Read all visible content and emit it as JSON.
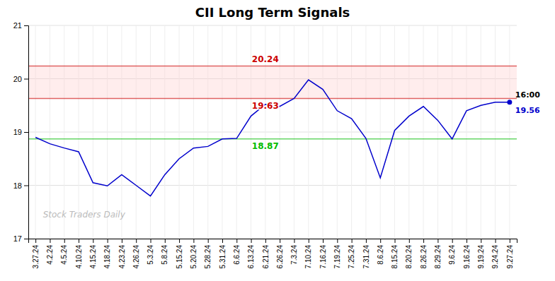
{
  "chart_data": {
    "type": "line",
    "title": "CII Long Term Signals",
    "categories": [
      "3.27.24",
      "4.2.24",
      "4.5.24",
      "4.10.24",
      "4.15.24",
      "4.18.24",
      "4.23.24",
      "4.26.24",
      "5.3.24",
      "5.8.24",
      "5.15.24",
      "5.20.24",
      "5.28.24",
      "5.31.24",
      "6.6.24",
      "6.13.24",
      "6.21.24",
      "6.26.24",
      "7.3.24",
      "7.10.24",
      "7.16.24",
      "7.19.24",
      "7.25.24",
      "7.31.24",
      "8.6.24",
      "8.15.24",
      "8.20.24",
      "8.26.24",
      "8.29.24",
      "9.6.24",
      "9.16.24",
      "9.19.24",
      "9.24.24",
      "9.27.24"
    ],
    "values": [
      18.9,
      18.78,
      18.7,
      18.63,
      18.05,
      17.99,
      18.2,
      18.0,
      17.8,
      18.2,
      18.5,
      18.7,
      18.73,
      18.87,
      18.88,
      19.3,
      19.52,
      19.48,
      19.63,
      19.98,
      19.8,
      19.4,
      19.25,
      18.88,
      18.14,
      19.03,
      19.3,
      19.48,
      19.22,
      18.87,
      19.4,
      19.5,
      19.56,
      19.56
    ],
    "color": "#0000cc",
    "ylim": [
      17,
      21
    ],
    "yticks": [
      17,
      18,
      19,
      20,
      21
    ],
    "grid": true,
    "band": {
      "values": [
        19.63,
        20.24
      ],
      "color": "#ffcccc"
    },
    "reference_lines": [
      {
        "value": 19.63,
        "label": "19.63",
        "color": "#cc0000"
      },
      {
        "value": 20.24,
        "label": "20.24",
        "color": "#cc0000"
      },
      {
        "value": 18.87,
        "label": "18.87",
        "color": "#00bb00"
      }
    ],
    "annotations": [
      {
        "text": "16:00",
        "color": "#000000"
      },
      {
        "text": "19.56",
        "color": "#0000cc"
      }
    ],
    "watermark": "Stock Traders Daily"
  }
}
